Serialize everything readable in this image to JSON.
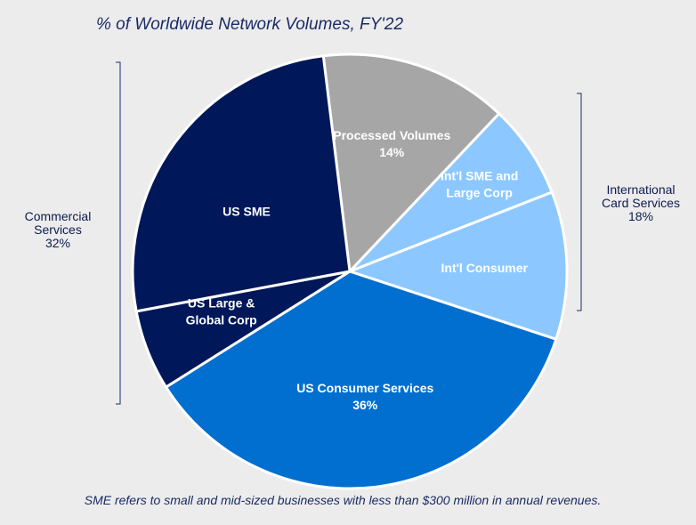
{
  "chart_data": {
    "type": "pie",
    "title": "% of Worldwide Network Volumes, FY'22",
    "slices": [
      {
        "name": "Processed Volumes",
        "label_lines": [
          "Processed Volumes",
          "14%"
        ],
        "value": 14,
        "color": "#a6a6a6"
      },
      {
        "name": "Int'l SME and Large Corp",
        "label_lines": [
          "Int'l SME and",
          "Large Corp"
        ],
        "value": 7,
        "color": "#8cc8ff"
      },
      {
        "name": "Int'l Consumer",
        "label_lines": [
          "Int'l Consumer"
        ],
        "value": 11,
        "color": "#8cc8ff"
      },
      {
        "name": "US Consumer Services",
        "label_lines": [
          "US Consumer Services",
          "36%"
        ],
        "value": 36,
        "color": "#006fcf"
      },
      {
        "name": "US Large & Global Corp",
        "label_lines": [
          "US Large &",
          "Global Corp"
        ],
        "value": 6,
        "color": "#00175a"
      },
      {
        "name": "US SME",
        "label_lines": [
          "US SME"
        ],
        "value": 26,
        "color": "#00175a"
      }
    ],
    "groups": [
      {
        "name": "Commercial Services",
        "label_lines": [
          "Commercial",
          "Services",
          "32%"
        ],
        "side": "left"
      },
      {
        "name": "International Card Services",
        "label_lines": [
          "International",
          "Card Services",
          "18%"
        ],
        "side": "right"
      }
    ],
    "footnote": "SME refers to small and mid-sized businesses with less than $300 million in annual revenues."
  }
}
